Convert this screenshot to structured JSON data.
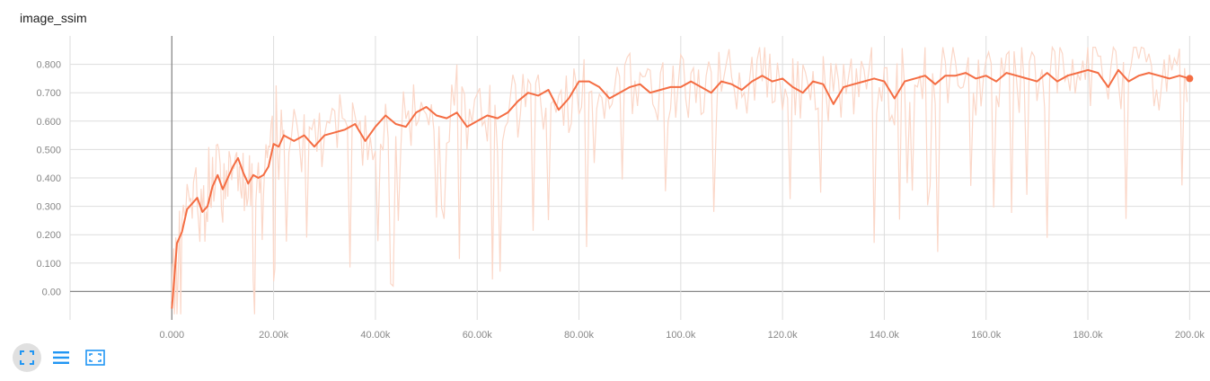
{
  "card": {
    "title": "image_ssim"
  },
  "toolbar": {
    "buttons": [
      {
        "icon": "fit-domain-icon",
        "active": true
      },
      {
        "icon": "list-icon",
        "active": false
      },
      {
        "icon": "expand-icon",
        "active": false
      }
    ]
  },
  "colors": {
    "line": "#f46d43",
    "raw": "#fbd7c8",
    "grid": "#dddddd",
    "axis": "#888888",
    "tick": "#888888",
    "accent": "#2196f3"
  },
  "chart_data": {
    "type": "line",
    "title": "image_ssim",
    "xlim": [
      -20000,
      204000
    ],
    "ylim": [
      -0.1,
      0.9
    ],
    "grid": true,
    "xticks": [
      0,
      20000,
      40000,
      60000,
      80000,
      100000,
      120000,
      140000,
      160000,
      180000,
      200000
    ],
    "xtick_labels": [
      "0.000",
      "20.00k",
      "40.00k",
      "60.00k",
      "80.00k",
      "100.0k",
      "120.0k",
      "140.0k",
      "160.0k",
      "180.0k",
      "200.0k"
    ],
    "yticks": [
      0.0,
      0.1,
      0.2,
      0.3,
      0.4,
      0.5,
      0.6,
      0.7,
      0.8
    ],
    "ytick_labels": [
      "0.00",
      "0.100",
      "0.200",
      "0.300",
      "0.400",
      "0.500",
      "0.600",
      "0.700",
      "0.800"
    ],
    "series": [
      {
        "x": [
          0,
          500,
          1000,
          2000,
          3000,
          4000,
          5000,
          6000,
          7000,
          8000,
          9000,
          10000,
          11000,
          12000,
          13000,
          14000,
          15000,
          16000,
          17000,
          18000,
          19000,
          20000,
          21000,
          22000,
          24000,
          26000,
          28000,
          30000,
          32000,
          34000,
          36000,
          38000,
          40000,
          42000,
          44000,
          46000,
          48000,
          50000,
          52000,
          54000,
          56000,
          58000,
          60000,
          62000,
          64000,
          66000,
          68000,
          70000,
          72000,
          74000,
          76000,
          78000,
          80000,
          82000,
          84000,
          86000,
          88000,
          90000,
          92000,
          94000,
          96000,
          98000,
          100000,
          102000,
          104000,
          106000,
          108000,
          110000,
          112000,
          114000,
          116000,
          118000,
          120000,
          122000,
          124000,
          126000,
          128000,
          130000,
          132000,
          134000,
          136000,
          138000,
          140000,
          142000,
          144000,
          146000,
          148000,
          150000,
          152000,
          154000,
          156000,
          158000,
          160000,
          162000,
          164000,
          166000,
          168000,
          170000,
          172000,
          174000,
          176000,
          178000,
          180000,
          182000,
          184000,
          186000,
          188000,
          190000,
          192000,
          194000,
          196000,
          198000,
          200000
        ],
        "y": [
          -0.06,
          0.05,
          0.17,
          0.21,
          0.29,
          0.31,
          0.33,
          0.28,
          0.3,
          0.37,
          0.41,
          0.36,
          0.4,
          0.44,
          0.47,
          0.42,
          0.38,
          0.41,
          0.4,
          0.41,
          0.44,
          0.52,
          0.51,
          0.55,
          0.53,
          0.55,
          0.51,
          0.55,
          0.56,
          0.57,
          0.59,
          0.53,
          0.58,
          0.62,
          0.59,
          0.58,
          0.63,
          0.65,
          0.62,
          0.61,
          0.63,
          0.58,
          0.6,
          0.62,
          0.61,
          0.63,
          0.67,
          0.7,
          0.69,
          0.71,
          0.64,
          0.68,
          0.74,
          0.74,
          0.72,
          0.68,
          0.7,
          0.72,
          0.73,
          0.7,
          0.71,
          0.72,
          0.72,
          0.74,
          0.72,
          0.7,
          0.74,
          0.73,
          0.71,
          0.74,
          0.76,
          0.74,
          0.75,
          0.72,
          0.7,
          0.74,
          0.73,
          0.66,
          0.72,
          0.73,
          0.74,
          0.75,
          0.74,
          0.68,
          0.74,
          0.75,
          0.76,
          0.73,
          0.76,
          0.76,
          0.77,
          0.75,
          0.76,
          0.74,
          0.77,
          0.76,
          0.75,
          0.74,
          0.77,
          0.74,
          0.76,
          0.77,
          0.78,
          0.77,
          0.72,
          0.78,
          0.74,
          0.76,
          0.77,
          0.76,
          0.75,
          0.76,
          0.75
        ]
      }
    ]
  }
}
